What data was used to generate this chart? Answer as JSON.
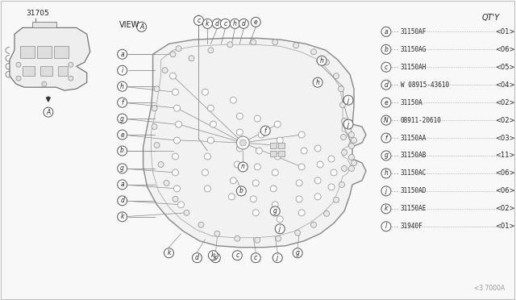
{
  "background_color": "#f8f8f8",
  "part_number_label": "31705",
  "view_label": "VIEW",
  "qty_label": "QT'Y",
  "watermark": "<3 7000A",
  "legend_items": [
    {
      "letter": "a",
      "part": "31150AF",
      "qty": "01",
      "dashes1": 5,
      "dashes2": 9
    },
    {
      "letter": "b",
      "part": "31150AG",
      "qty": "06",
      "dashes1": 5,
      "dashes2": 9
    },
    {
      "letter": "c",
      "part": "31150AH",
      "qty": "05",
      "dashes1": 4,
      "dashes2": 8
    },
    {
      "letter": "d",
      "part": "W 08915-43610",
      "qty": "04",
      "dashes1": 1,
      "dashes2": 3
    },
    {
      "letter": "e",
      "part": "31150A",
      "qty": "02",
      "dashes1": 4,
      "dashes2": 9
    },
    {
      "letter": "N",
      "part": "08911-20610",
      "qty": "02",
      "dashes1": 0,
      "dashes2": 4
    },
    {
      "letter": "f",
      "part": "31150AA",
      "qty": "03",
      "dashes1": 5,
      "dashes2": 9
    },
    {
      "letter": "g",
      "part": "31150AB",
      "qty": "11",
      "dashes1": 5,
      "dashes2": 9
    },
    {
      "letter": "h",
      "part": "31150AC",
      "qty": "06",
      "dashes1": 5,
      "dashes2": 9
    },
    {
      "letter": "j",
      "part": "31150AD",
      "qty": "06",
      "dashes1": 4,
      "dashes2": 9
    },
    {
      "letter": "k",
      "part": "31150AE",
      "qty": "02",
      "dashes1": 4,
      "dashes2": 8
    },
    {
      "letter": "l",
      "part": "31940F",
      "qty": "01",
      "dashes1": 5,
      "dashes2": 11
    }
  ],
  "line_color": "#777777",
  "text_color": "#222222",
  "fig_width": 6.4,
  "fig_height": 3.72,
  "dpi": 100
}
